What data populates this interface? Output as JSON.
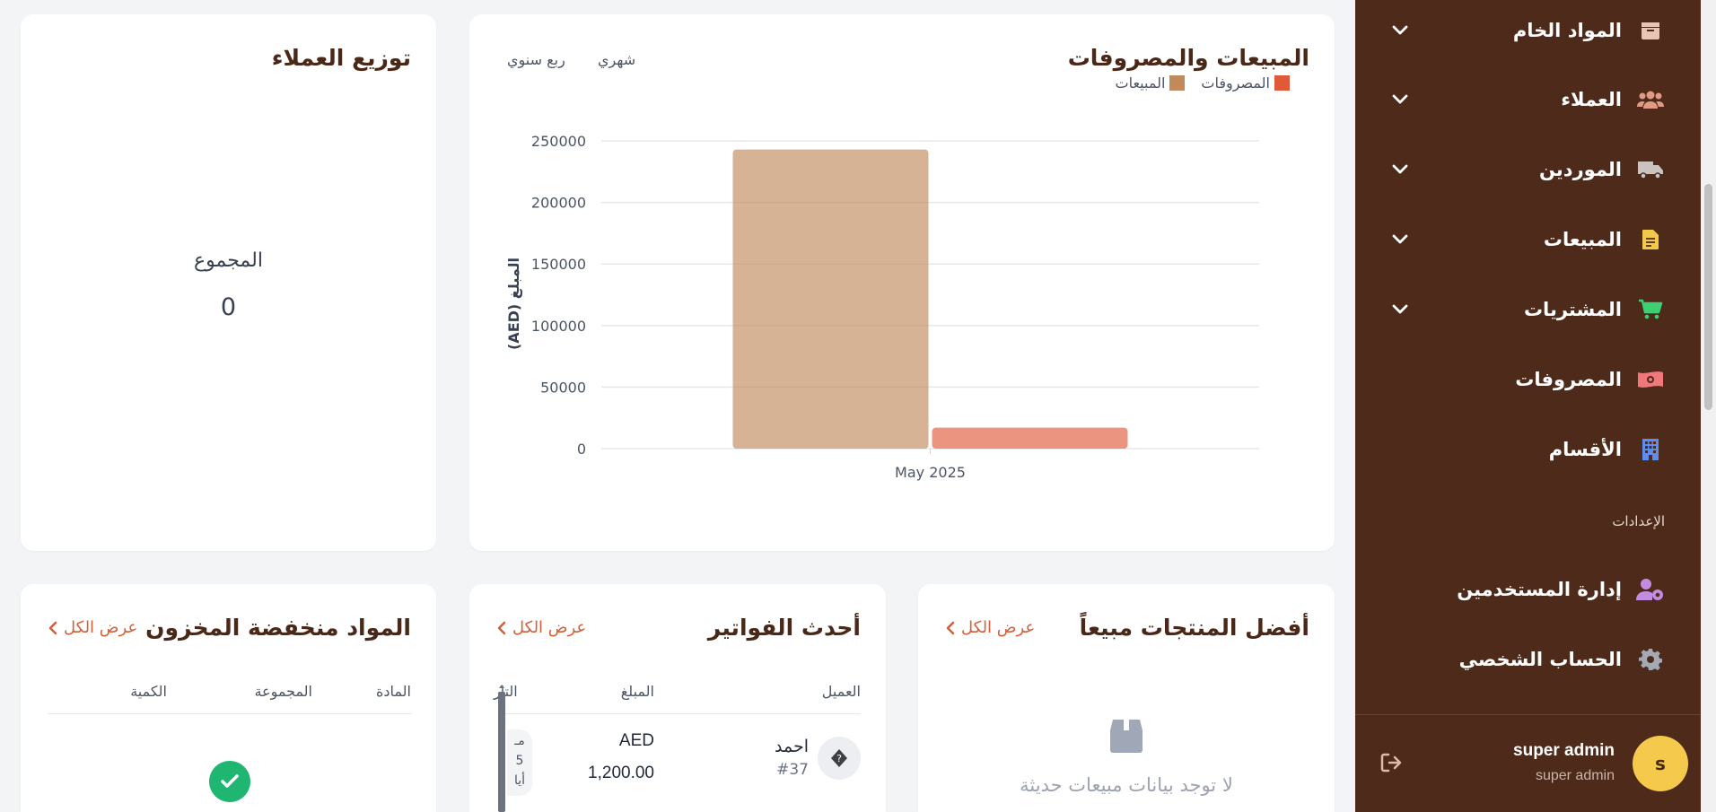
{
  "sidebar": {
    "items": [
      {
        "label": "المواد الخام",
        "icon": "box-icon",
        "has_chevron": true
      },
      {
        "label": "العملاء",
        "icon": "users-icon",
        "has_chevron": true
      },
      {
        "label": "الموردين",
        "icon": "truck-icon",
        "has_chevron": true
      },
      {
        "label": "المبيعات",
        "icon": "invoice-icon",
        "has_chevron": true
      },
      {
        "label": "المشتريات",
        "icon": "cart-icon",
        "has_chevron": true
      },
      {
        "label": "المصروفات",
        "icon": "money-icon",
        "has_chevron": false
      },
      {
        "label": "الأقسام",
        "icon": "building-icon",
        "has_chevron": false
      }
    ],
    "settings_section": "الإعدادات",
    "settings_items": [
      {
        "label": "إدارة المستخدمين",
        "icon": "user-gear-icon"
      },
      {
        "label": "الحساب الشخصي",
        "icon": "gear-icon"
      }
    ],
    "user": {
      "initial": "s",
      "name": "super admin",
      "role": "super admin"
    }
  },
  "sales_chart": {
    "title": "المبيعات والمصروفات",
    "tabs": [
      "شهري",
      "ربع سنوي"
    ],
    "legend_sales": "المبيعات",
    "legend_expenses": "المصروفات"
  },
  "customers_card": {
    "title": "توزيع العملاء",
    "total_label": "المجموع",
    "total_value": "0"
  },
  "top_products": {
    "title": "أفضل المنتجات مبيعاً",
    "view_all": "عرض الكل",
    "empty": "لا توجد بيانات مبيعات حديثة"
  },
  "latest_invoices": {
    "title": "أحدث الفواتير",
    "view_all": "عرض الكل",
    "headers": {
      "customer": "العميل",
      "amount": "المبلغ",
      "date": "التار"
    },
    "rows": [
      {
        "icon": "question-icon",
        "customer": "احمد",
        "number": "#37",
        "currency": "AED",
        "amount": "1,200.00",
        "date_line1": "مـ",
        "date_line2": "5",
        "date_line3": "أيا"
      }
    ]
  },
  "low_stock": {
    "title": "المواد منخفضة المخزون",
    "view_all": "عرض الكل",
    "headers": {
      "material": "المادة",
      "group": "المجموعة",
      "quantity": "الكمية"
    }
  },
  "colors": {
    "sidebar": "#4d2a1a",
    "accent": "#d0603a",
    "sales": "#c08a5b",
    "expenses": "#e05a3a",
    "title": "#4a2818"
  },
  "chart_data": {
    "type": "bar",
    "title": "المبيعات والمصروفات",
    "categories": [
      "May 2025"
    ],
    "series": [
      {
        "name": "المبيعات",
        "values": [
          243000
        ]
      },
      {
        "name": "المصروفات",
        "values": [
          17000
        ]
      }
    ],
    "ylabel": "المبلغ (AED)",
    "xlabel": "",
    "ylim": [
      0,
      250000
    ],
    "yticks": [
      0,
      50000,
      100000,
      150000,
      200000,
      250000
    ],
    "grid": true,
    "legend": "top-right"
  }
}
